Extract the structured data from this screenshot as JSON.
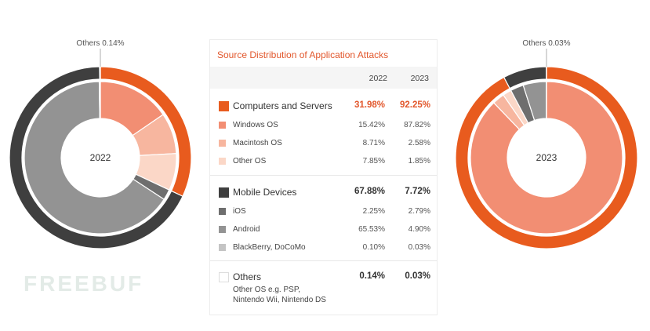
{
  "chart_data": [
    {
      "type": "pie",
      "center_label": "2022",
      "annotation": "Others 0.14%",
      "rings": {
        "outer": [
          {
            "name": "Computers and Servers",
            "value": 31.98,
            "color": "#e85b1e"
          },
          {
            "name": "Mobile Devices",
            "value": 67.88,
            "color": "#3f3f3f"
          },
          {
            "name": "Others",
            "value": 0.14,
            "color": "#ffffff"
          }
        ],
        "inner": [
          {
            "name": "Windows OS",
            "value": 15.42,
            "color": "#f28e73"
          },
          {
            "name": "Macintosh OS",
            "value": 8.71,
            "color": "#f7b69f"
          },
          {
            "name": "Other OS",
            "value": 7.85,
            "color": "#fbd7c7"
          },
          {
            "name": "iOS",
            "value": 2.25,
            "color": "#6e6e6e"
          },
          {
            "name": "Android",
            "value": 65.53,
            "color": "#939393"
          },
          {
            "name": "BlackBerry, DoCoMo",
            "value": 0.1,
            "color": "#c4c4c4"
          },
          {
            "name": "Others",
            "value": 0.14,
            "color": "#ffffff"
          }
        ]
      }
    },
    {
      "type": "table",
      "title": "Source Distribution of Application Attacks",
      "columns": [
        "2022",
        "2023"
      ],
      "groups": [
        {
          "name": "Computers and Servers",
          "color": "#e85b1e",
          "style": "orange",
          "values": [
            "31.98%",
            "92.25%"
          ],
          "items": [
            {
              "name": "Windows OS",
              "color": "#f28e73",
              "values": [
                "15.42%",
                "87.82%"
              ]
            },
            {
              "name": "Macintosh OS",
              "color": "#f7b69f",
              "values": [
                "8.71%",
                "2.58%"
              ]
            },
            {
              "name": "Other OS",
              "color": "#fbd7c7",
              "values": [
                "7.85%",
                "1.85%"
              ]
            }
          ]
        },
        {
          "name": "Mobile Devices",
          "color": "#3f3f3f",
          "style": "dark",
          "values": [
            "67.88%",
            "7.72%"
          ],
          "items": [
            {
              "name": "iOS",
              "color": "#6e6e6e",
              "values": [
                "2.25%",
                "2.79%"
              ]
            },
            {
              "name": "Android",
              "color": "#939393",
              "values": [
                "65.53%",
                "4.90%"
              ]
            },
            {
              "name": "BlackBerry, DoCoMo",
              "color": "#c4c4c4",
              "values": [
                "0.10%",
                "0.03%"
              ]
            }
          ]
        },
        {
          "name": "Others",
          "color": "#ffffff",
          "style": "dark",
          "values": [
            "0.14%",
            "0.03%"
          ],
          "note_lines": [
            "Other OS e.g. PSP,",
            "Nintendo Wii, Nintendo DS"
          ]
        }
      ]
    },
    {
      "type": "pie",
      "center_label": "2023",
      "annotation": "Others 0.03%",
      "rings": {
        "outer": [
          {
            "name": "Computers and Servers",
            "value": 92.25,
            "color": "#e85b1e"
          },
          {
            "name": "Mobile Devices",
            "value": 7.72,
            "color": "#3f3f3f"
          },
          {
            "name": "Others",
            "value": 0.03,
            "color": "#ffffff"
          }
        ],
        "inner": [
          {
            "name": "Windows OS",
            "value": 87.82,
            "color": "#f28e73"
          },
          {
            "name": "Macintosh OS",
            "value": 2.58,
            "color": "#f7b69f"
          },
          {
            "name": "Other OS",
            "value": 1.85,
            "color": "#fbd7c7"
          },
          {
            "name": "iOS",
            "value": 2.79,
            "color": "#6e6e6e"
          },
          {
            "name": "Android",
            "value": 4.9,
            "color": "#939393"
          },
          {
            "name": "BlackBerry, DoCoMo",
            "value": 0.03,
            "color": "#c4c4c4"
          },
          {
            "name": "Others",
            "value": 0.03,
            "color": "#ffffff"
          }
        ]
      }
    }
  ],
  "watermark": "FREEBUF"
}
